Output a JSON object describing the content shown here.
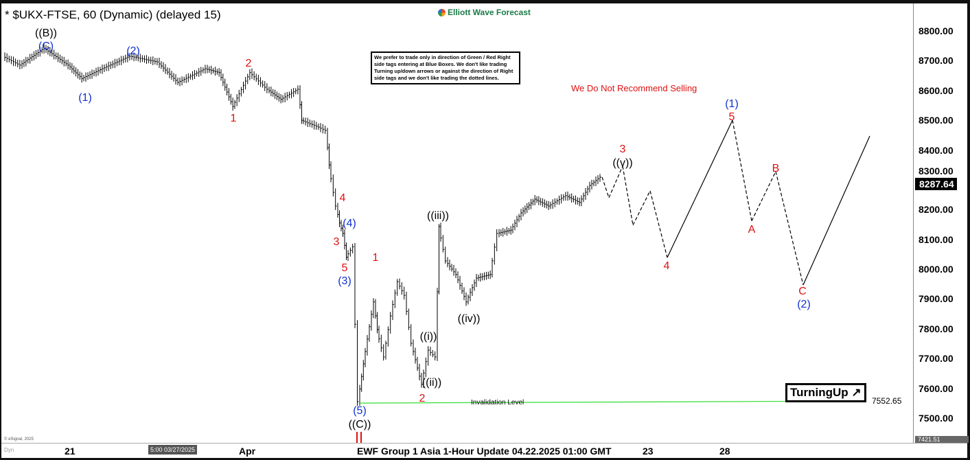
{
  "header": {
    "title": "* $UKX-FTSE, 60 (Dynamic) (delayed 15)",
    "logo": "Elliott Wave Forecast"
  },
  "note": "We prefer to trade only in direction of Green / Red Right side tags entering at Blue Boxes. We don't like trading Turning up/down arrows or against the direction of Right side tags and we don't like trading the dotted lines.",
  "warning": "We Do Not Recommend Selling",
  "turning_label": "TurningUp",
  "turning_icon": "arrow-up-right-icon",
  "invalidation": {
    "label": "Invalidation Level",
    "value": "7552.65"
  },
  "last_price": "8287.64",
  "low_price": "7421.51",
  "footer": {
    "dyn": "Dyn",
    "cursor_time": "5:00 03/27/2025",
    "update": "EWF Group 1 Asia 1-Hour Update 04.22.2025 01:00 GMT",
    "copyright": "© eSignal, 2025"
  },
  "chart_data": {
    "type": "line",
    "title": "* $UKX-FTSE, 60 (Dynamic) (delayed 15)",
    "ylim": [
      7440,
      8900
    ],
    "y_ticks": [
      "8800.00",
      "8700.00",
      "8600.00",
      "8500.00",
      "8400.00",
      "8300.00",
      "8200.00",
      "8100.00",
      "8000.00",
      "7900.00",
      "7800.00",
      "7700.00",
      "7600.00",
      "7500.00"
    ],
    "x_ticks": [
      "21",
      "Apr",
      "23",
      "28"
    ],
    "price_path": [
      8715,
      8685,
      8742,
      8685,
      8640,
      8673,
      8715,
      8696,
      8627,
      8673,
      8660,
      8546,
      8660,
      8604,
      8570,
      8604,
      8500,
      8477,
      8466,
      8350,
      8212,
      8155,
      8120,
      8040,
      8075,
      7555,
      7682,
      7890,
      7797,
      7705,
      7843,
      7958,
      7912,
      7751,
      7613,
      7728,
      7705,
      8143,
      8028,
      7982,
      7890,
      7970,
      7982,
      8120,
      8131,
      8189,
      8235,
      8212,
      8247,
      8224,
      8281,
      8309
    ],
    "projection": [
      {
        "price": 8309,
        "style": "dashed"
      },
      {
        "price": 8240,
        "style": "dashed"
      },
      {
        "price": 8346,
        "style": "dashed"
      },
      {
        "price": 8148,
        "style": "dashed"
      },
      {
        "price": 8263,
        "style": "dashed"
      },
      {
        "price": 8039,
        "style": "solid"
      },
      {
        "price": 8500,
        "style": "dashed"
      },
      {
        "price": 8162,
        "style": "dashed"
      },
      {
        "price": 8328,
        "style": "dashed"
      },
      {
        "price": 7947,
        "style": "solid"
      },
      {
        "price": 8447,
        "style": "solid"
      }
    ],
    "invalidation_level": 7552.65,
    "colors": {
      "bars": "#000000",
      "invalidation": "#33dd33",
      "impulse": "#e01010",
      "cycle": "#1030d0"
    },
    "wave_labels": {
      "B2": "((B))",
      "C1": "(C)",
      "w1": "(1)",
      "w2": "(2)",
      "r1": "1",
      "r2": "2",
      "r4": "4",
      "b4": "(4)",
      "r3": "3",
      "r5": "5",
      "b3": "(3)",
      "b5": "(5)",
      "C2": "((C))",
      "s1": "1",
      "i": "((i))",
      "ii": "((ii))",
      "s2": "2",
      "iii": "((iii))",
      "iv": "((iv))",
      "v": "((v))",
      "p3": "3",
      "p4": "4",
      "p1": "(1)",
      "p5": "5",
      "A": "A",
      "B": "B",
      "C": "C",
      "p2": "(2)"
    }
  }
}
